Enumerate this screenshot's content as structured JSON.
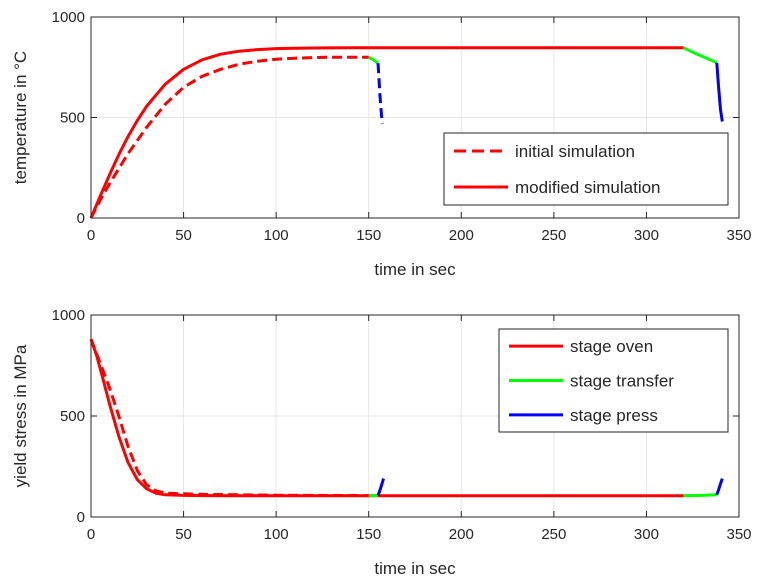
{
  "colors": {
    "oven": "#ff0000",
    "transfer": "#00ff00",
    "press": "#0000ff",
    "axis": "#262626",
    "grid": "#e6e6e6"
  },
  "chart_data": [
    {
      "type": "line",
      "xlabel": "time in sec",
      "ylabel": "temperature in °C",
      "xlim": [
        0,
        350
      ],
      "ylim": [
        0,
        1000
      ],
      "xticks": [
        0,
        50,
        100,
        150,
        200,
        250,
        300,
        350
      ],
      "yticks": [
        0,
        500,
        1000
      ],
      "xtick_labels": [
        "0",
        "50",
        "100",
        "150",
        "200",
        "250",
        "300",
        "350"
      ],
      "ytick_labels": [
        "0",
        "500",
        "1000"
      ],
      "grid": true,
      "legend_position": "bottom-right",
      "legend": [
        {
          "label": "initial simulation",
          "style": "dashed",
          "color": "#ff0000"
        },
        {
          "label": "modified simulation",
          "style": "solid",
          "color": "#ff0000"
        }
      ],
      "series": [
        {
          "name": "initial simulation",
          "style": "dashed",
          "color": "#ff0000",
          "x": [
            0,
            5,
            10,
            20,
            30,
            40,
            50,
            60,
            70,
            80,
            90,
            100,
            110,
            120,
            130,
            140,
            150
          ],
          "y": [
            0,
            90,
            170,
            320,
            450,
            565,
            650,
            705,
            740,
            765,
            780,
            790,
            795,
            798,
            800,
            800,
            800
          ]
        },
        {
          "name": "initial transfer",
          "style": "solid",
          "color": "#00ff00",
          "x": [
            150,
            152,
            155
          ],
          "y": [
            800,
            790,
            770
          ]
        },
        {
          "name": "initial press",
          "style": "dashed",
          "color": "#0000ff",
          "x": [
            155,
            155.5,
            156,
            156.5,
            157,
            157.5
          ],
          "y": [
            770,
            700,
            620,
            560,
            500,
            470
          ]
        },
        {
          "name": "modified simulation",
          "style": "solid",
          "color": "#ff0000",
          "x": [
            0,
            5,
            10,
            15,
            20,
            25,
            30,
            40,
            50,
            60,
            70,
            80,
            90,
            100,
            110,
            120,
            140,
            160,
            200,
            250,
            300,
            320
          ],
          "y": [
            0,
            110,
            215,
            315,
            405,
            485,
            555,
            665,
            740,
            787,
            815,
            830,
            838,
            843,
            845,
            846,
            847,
            847,
            847,
            847,
            847,
            847
          ]
        },
        {
          "name": "modified transfer",
          "style": "solid",
          "color": "#00ff00",
          "x": [
            320,
            325,
            330,
            335,
            338
          ],
          "y": [
            847,
            825,
            805,
            785,
            772
          ]
        },
        {
          "name": "modified press",
          "style": "solid",
          "color": "#0000ff",
          "x": [
            338,
            339,
            340,
            341
          ],
          "y": [
            772,
            650,
            540,
            480
          ]
        }
      ]
    },
    {
      "type": "line",
      "xlabel": "time in sec",
      "ylabel": "yield stress in MPa",
      "xlim": [
        0,
        350
      ],
      "ylim": [
        0,
        1000
      ],
      "xticks": [
        0,
        50,
        100,
        150,
        200,
        250,
        300,
        350
      ],
      "yticks": [
        0,
        500,
        1000
      ],
      "xtick_labels": [
        "0",
        "50",
        "100",
        "150",
        "200",
        "250",
        "300",
        "350"
      ],
      "ytick_labels": [
        "0",
        "500",
        "1000"
      ],
      "grid": true,
      "legend_position": "top-right",
      "legend": [
        {
          "label": "stage oven",
          "style": "solid",
          "color": "#ff0000"
        },
        {
          "label": "stage transfer",
          "style": "solid",
          "color": "#00ff00"
        },
        {
          "label": "stage press",
          "style": "solid",
          "color": "#0000ff"
        }
      ],
      "series": [
        {
          "name": "stage oven",
          "style": "solid",
          "color": "#ff0000",
          "x": [
            0,
            3,
            6,
            10,
            15,
            20,
            25,
            30,
            35,
            40,
            50,
            60,
            80,
            100,
            150,
            200,
            250,
            300,
            320
          ],
          "y": [
            880,
            800,
            700,
            560,
            400,
            270,
            185,
            140,
            118,
            110,
            107,
            106,
            105,
            105,
            105,
            105,
            105,
            105,
            105
          ]
        },
        {
          "name": "stage oven initial",
          "style": "dashed",
          "color": "#ff0000",
          "x": [
            0,
            5,
            10,
            15,
            20,
            25,
            30,
            35,
            40,
            50,
            60,
            80,
            100,
            120,
            150
          ],
          "y": [
            880,
            760,
            640,
            500,
            350,
            230,
            160,
            130,
            118,
            115,
            112,
            110,
            108,
            107,
            106
          ]
        },
        {
          "name": "stage transfer",
          "style": "solid",
          "color": "#00ff00",
          "x": [
            150,
            153,
            155
          ],
          "y": [
            106,
            106,
            107
          ]
        },
        {
          "name": "stage press",
          "style": "solid",
          "color": "#0000ff",
          "x": [
            155,
            156,
            157,
            158
          ],
          "y": [
            107,
            130,
            160,
            190
          ]
        },
        {
          "name": "stage transfer modified",
          "style": "solid",
          "color": "#00ff00",
          "x": [
            320,
            330,
            338
          ],
          "y": [
            105,
            107,
            110
          ]
        },
        {
          "name": "stage press modified",
          "style": "solid",
          "color": "#0000ff",
          "x": [
            338,
            339,
            340,
            341
          ],
          "y": [
            110,
            135,
            165,
            190
          ]
        }
      ]
    }
  ]
}
